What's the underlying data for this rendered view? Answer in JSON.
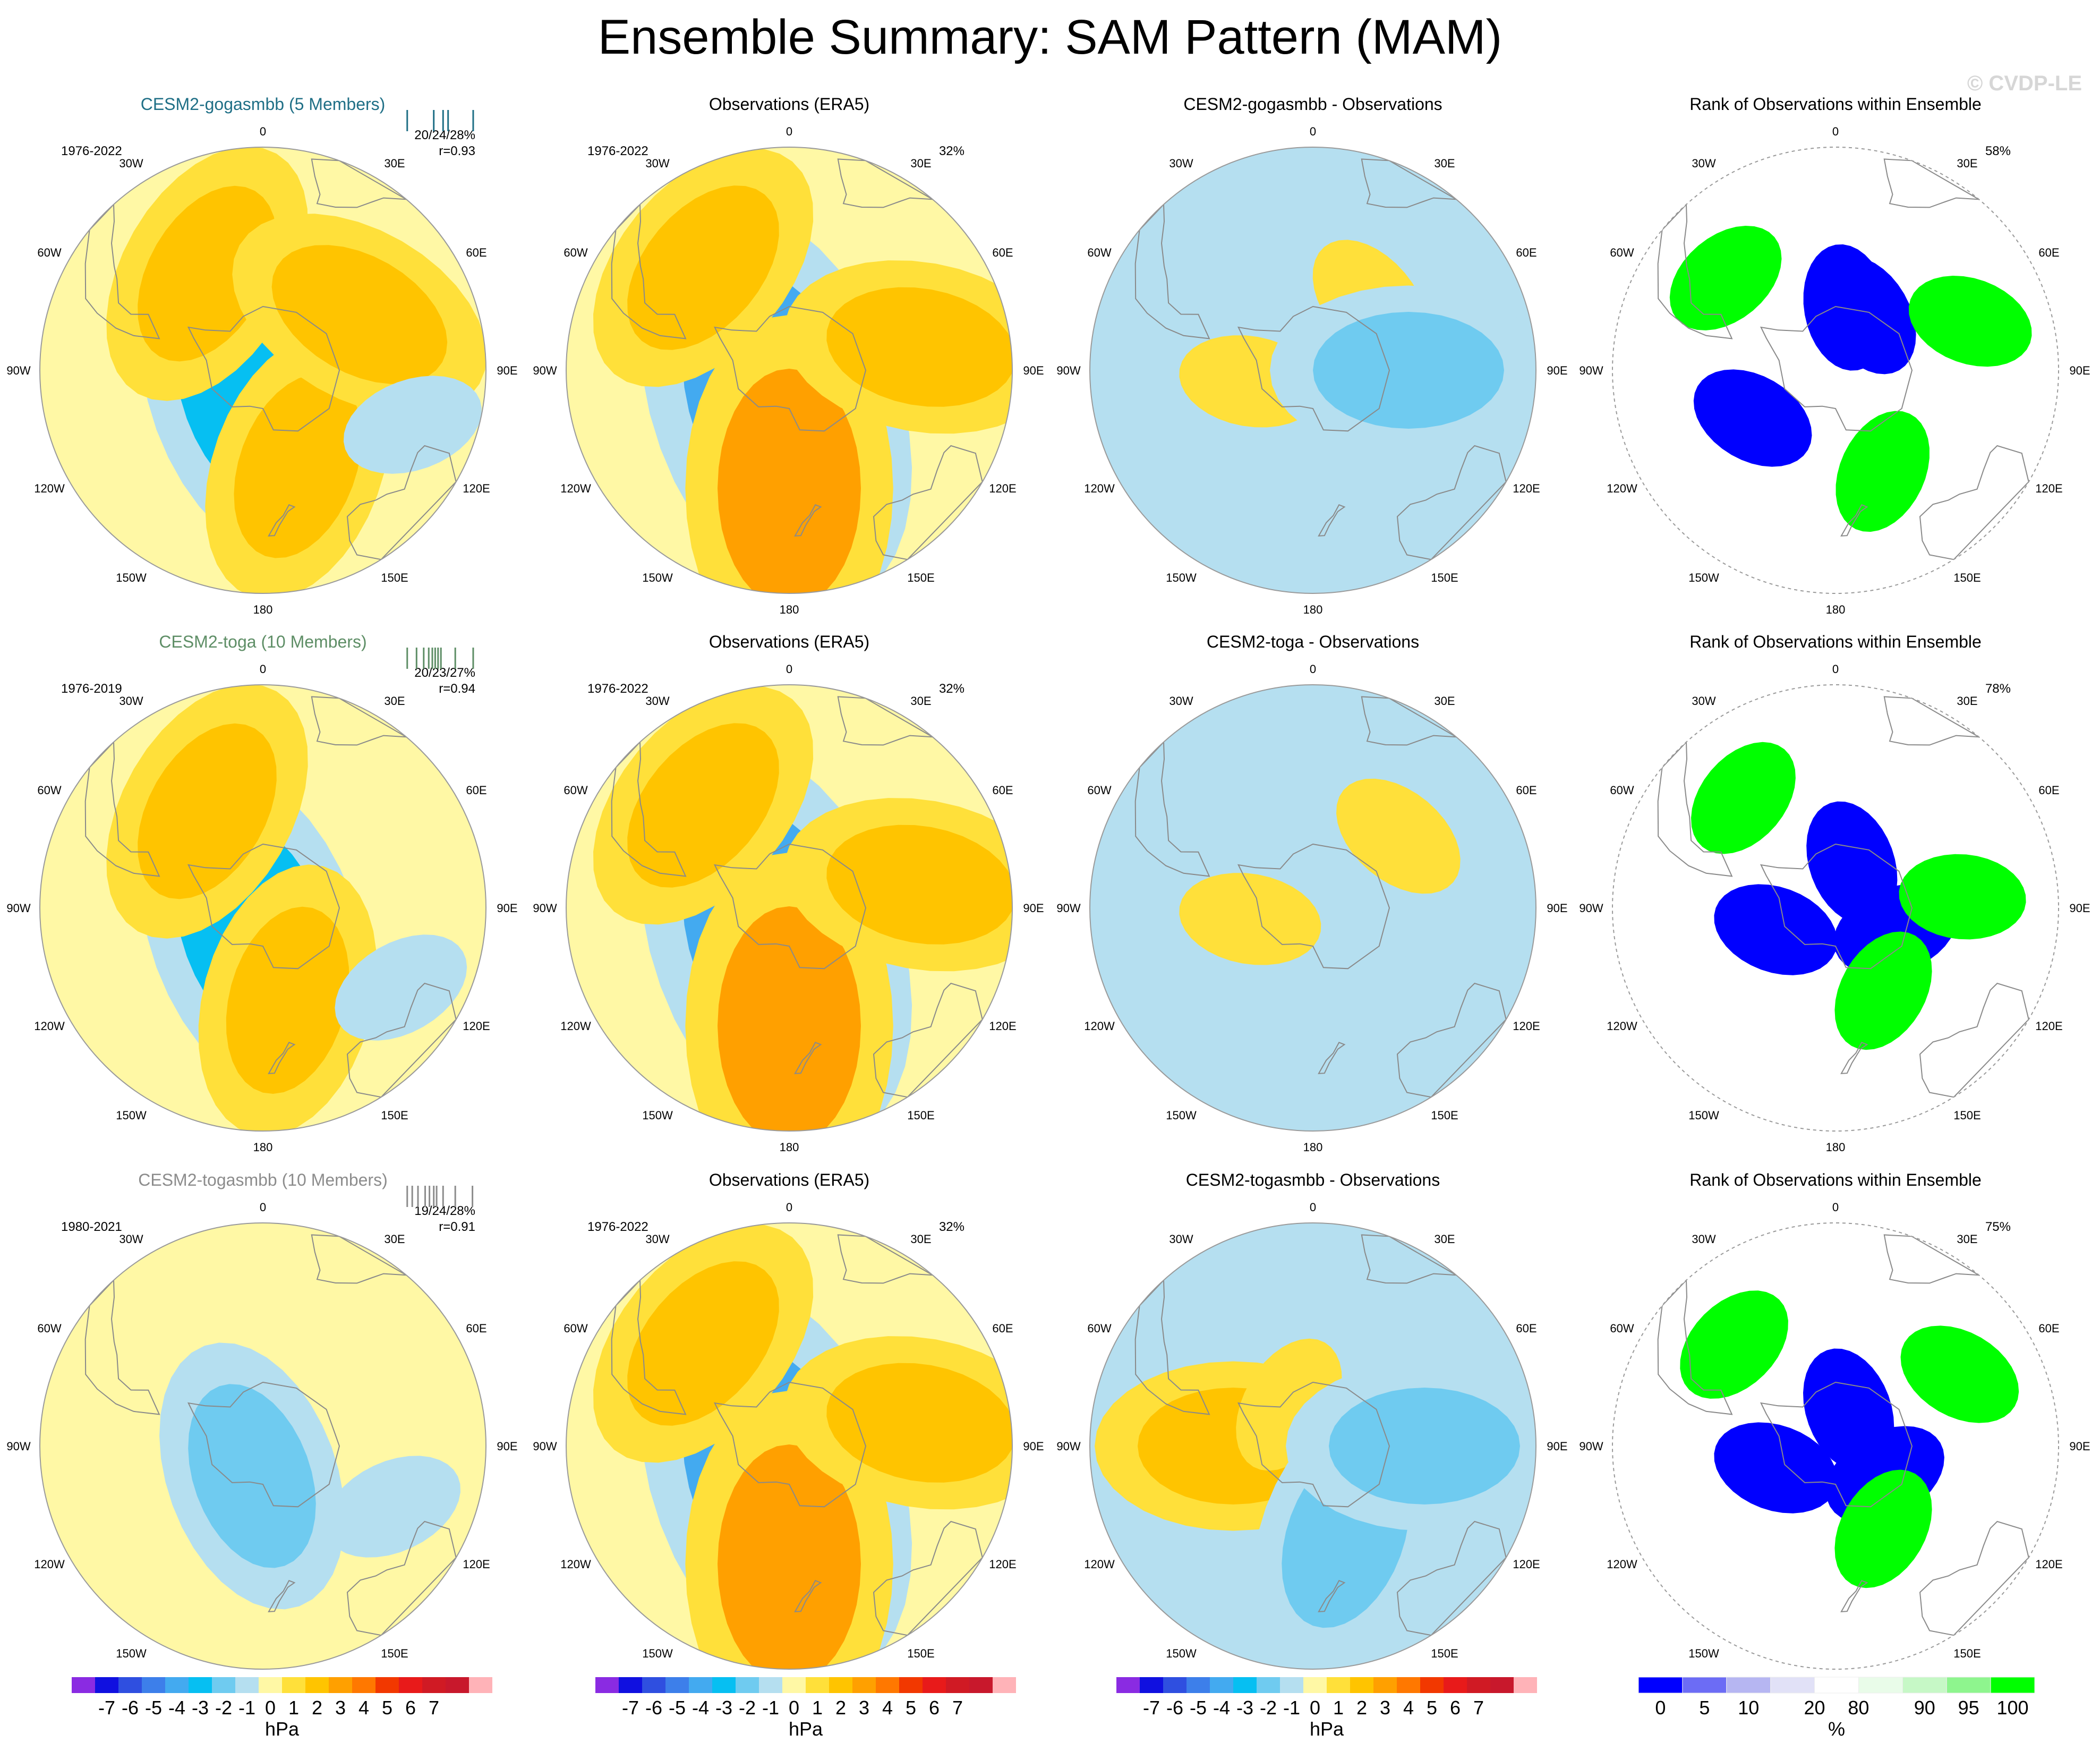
{
  "title": "Ensemble Summary: SAM Pattern (MAM)",
  "watermark": "© CVDP-LE",
  "longitude_labels": [
    "0",
    "30E",
    "60E",
    "90E",
    "120E",
    "150E",
    "180",
    "150W",
    "120W",
    "90W",
    "60W",
    "30W"
  ],
  "colors": {
    "land_outline": "#8a8a8a",
    "panel_border": "#9a9a9a",
    "hpa_scale": [
      "#8a2be2",
      "#1010e0",
      "#2f4fe0",
      "#3d7fea",
      "#43aaf0",
      "#06bff2",
      "#6fcbf0",
      "#b5dff0",
      "#fff8a5",
      "#ffe03a",
      "#ffc400",
      "#ffa000",
      "#ff7800",
      "#f23800",
      "#e81a1a",
      "#d01a24",
      "#c8182c",
      "#ffb3b8"
    ],
    "rank_scale": [
      "#0000ff",
      "#6c6cf5",
      "#b6b6f2",
      "#e1e1f7",
      "#ffffff",
      "#e9fce9",
      "#c6f8c6",
      "#8ef58e",
      "#00ff00"
    ]
  },
  "colorbars": {
    "hpa": {
      "ticks": [
        "-7",
        "-6",
        "-5",
        "-4",
        "-3",
        "-2",
        "-1",
        "0",
        "1",
        "2",
        "3",
        "4",
        "5",
        "6",
        "7"
      ],
      "unit": "hPa"
    },
    "rank": {
      "ticks": [
        "0",
        "5",
        "10",
        "20",
        "80",
        "90",
        "95",
        "100"
      ],
      "unit": "%"
    }
  },
  "chart_data": [
    {
      "type": "heatmap",
      "projection": "south-polar-stereographic",
      "title": "CESM2-gogasmbb (5 Members)",
      "title_color": "#1f6f86",
      "period": "1976-2022",
      "stats": "20/24/28%",
      "pattern_correlation": "r=0.93",
      "member_ticks": [
        0.05,
        0.42,
        0.55,
        0.62,
        0.97
      ],
      "tick_color": "#1f6f86",
      "units": "hPa",
      "features": [
        {
          "lon": 200,
          "lat": -82,
          "value": -3
        },
        {
          "lon": 330,
          "lat": -55,
          "value": 2
        },
        {
          "lon": 160,
          "lat": -58,
          "value": 2
        },
        {
          "lon": 60,
          "lat": -55,
          "value": 2
        },
        {
          "lon": 110,
          "lat": -40,
          "value": -1
        }
      ]
    },
    {
      "type": "heatmap",
      "projection": "south-polar-stereographic",
      "title": "Observations (ERA5)",
      "title_color": "#000000",
      "period": "1976-2022",
      "percent_variance": "32%",
      "units": "hPa",
      "features": [
        {
          "lon": 200,
          "lat": -78,
          "value": -4
        },
        {
          "lon": 320,
          "lat": -48,
          "value": 2
        },
        {
          "lon": 180,
          "lat": -53,
          "value": 3
        },
        {
          "lon": 80,
          "lat": -48,
          "value": 2
        }
      ]
    },
    {
      "type": "heatmap",
      "projection": "south-polar-stereographic",
      "title": "CESM2-gogasmbb - Observations",
      "title_color": "#000000",
      "units": "hPa",
      "features": [
        {
          "lon": 260,
          "lat": -70,
          "value": 1
        },
        {
          "lon": 40,
          "lat": -62,
          "value": 1
        },
        {
          "lon": 90,
          "lat": -60,
          "value": -2
        }
      ]
    },
    {
      "type": "heatmap",
      "projection": "south-polar-stereographic",
      "title": "Rank of Observations within Ensemble",
      "title_color": "#000000",
      "percent_area": "58%",
      "units": "%",
      "features": [
        {
          "lon": 240,
          "lat": -60,
          "value": 0
        },
        {
          "lon": 10,
          "lat": -70,
          "value": 0
        },
        {
          "lon": 30,
          "lat": -70,
          "value": 0
        },
        {
          "lon": 310,
          "lat": -45,
          "value": 100
        },
        {
          "lon": 70,
          "lat": -45,
          "value": 100
        },
        {
          "lon": 155,
          "lat": -55,
          "value": 100
        }
      ]
    },
    {
      "type": "heatmap",
      "projection": "south-polar-stereographic",
      "title": "CESM2-toga (10 Members)",
      "title_color": "#5e8e66",
      "period": "1976-2019",
      "stats": "20/23/27%",
      "pattern_correlation": "r=0.94",
      "member_ticks": [
        0.05,
        0.18,
        0.28,
        0.35,
        0.4,
        0.44,
        0.48,
        0.52,
        0.72,
        0.97
      ],
      "tick_color": "#5e8e66",
      "units": "hPa",
      "features": [
        {
          "lon": 200,
          "lat": -82,
          "value": -3
        },
        {
          "lon": 330,
          "lat": -55,
          "value": 2
        },
        {
          "lon": 165,
          "lat": -60,
          "value": 2
        },
        {
          "lon": 120,
          "lat": -40,
          "value": -1
        }
      ]
    },
    {
      "type": "heatmap",
      "projection": "south-polar-stereographic",
      "title": "Observations (ERA5)",
      "title_color": "#000000",
      "period": "1976-2022",
      "percent_variance": "32%",
      "units": "hPa",
      "features": [
        {
          "lon": 200,
          "lat": -78,
          "value": -4
        },
        {
          "lon": 320,
          "lat": -48,
          "value": 2
        },
        {
          "lon": 180,
          "lat": -53,
          "value": 3
        },
        {
          "lon": 80,
          "lat": -48,
          "value": 2
        }
      ]
    },
    {
      "type": "heatmap",
      "projection": "south-polar-stereographic",
      "title": "CESM2-toga - Observations",
      "title_color": "#000000",
      "units": "hPa",
      "features": [
        {
          "lon": 260,
          "lat": -70,
          "value": 1
        },
        {
          "lon": 150,
          "lat": -65,
          "value": -1
        },
        {
          "lon": 50,
          "lat": -55,
          "value": 1
        }
      ]
    },
    {
      "type": "heatmap",
      "projection": "south-polar-stereographic",
      "title": "Rank of Observations within Ensemble",
      "title_color": "#000000",
      "percent_area": "78%",
      "units": "%",
      "features": [
        {
          "lon": 250,
          "lat": -70,
          "value": 0
        },
        {
          "lon": 20,
          "lat": -75,
          "value": 0
        },
        {
          "lon": 110,
          "lat": -70,
          "value": 0
        },
        {
          "lon": 320,
          "lat": -45,
          "value": 100
        },
        {
          "lon": 85,
          "lat": -50,
          "value": 100
        },
        {
          "lon": 150,
          "lat": -60,
          "value": 100
        }
      ]
    },
    {
      "type": "heatmap",
      "projection": "south-polar-stereographic",
      "title": "CESM2-togasmbb (10 Members)",
      "title_color": "#8c8c8c",
      "period": "1980-2021",
      "stats": "19/24/28%",
      "pattern_correlation": "r=0.91",
      "member_ticks": [
        0.05,
        0.12,
        0.2,
        0.3,
        0.36,
        0.42,
        0.46,
        0.55,
        0.72,
        0.96
      ],
      "tick_color": "#8c8c8c",
      "units": "hPa",
      "features": [
        {
          "lon": 200,
          "lat": -80,
          "value": -2
        },
        {
          "lon": 115,
          "lat": -45,
          "value": -1
        }
      ]
    },
    {
      "type": "heatmap",
      "projection": "south-polar-stereographic",
      "title": "Observations (ERA5)",
      "title_color": "#000000",
      "period": "1976-2022",
      "percent_variance": "32%",
      "units": "hPa",
      "features": [
        {
          "lon": 200,
          "lat": -78,
          "value": -4
        },
        {
          "lon": 320,
          "lat": -48,
          "value": 2
        },
        {
          "lon": 180,
          "lat": -53,
          "value": 3
        },
        {
          "lon": 80,
          "lat": -48,
          "value": 2
        }
      ]
    },
    {
      "type": "heatmap",
      "projection": "south-polar-stereographic",
      "title": "CESM2-togasmbb - Observations",
      "title_color": "#000000",
      "units": "hPa",
      "features": [
        {
          "lon": 270,
          "lat": -65,
          "value": 2
        },
        {
          "lon": 330,
          "lat": -75,
          "value": 1
        },
        {
          "lon": 160,
          "lat": -60,
          "value": -2
        },
        {
          "lon": 90,
          "lat": -55,
          "value": -2
        }
      ]
    },
    {
      "type": "heatmap",
      "projection": "south-polar-stereographic",
      "title": "Rank of Observations within Ensemble",
      "title_color": "#000000",
      "percent_area": "75%",
      "units": "%",
      "features": [
        {
          "lon": 250,
          "lat": -70,
          "value": 0
        },
        {
          "lon": 20,
          "lat": -78,
          "value": 0
        },
        {
          "lon": 120,
          "lat": -72,
          "value": 0
        },
        {
          "lon": 315,
          "lat": -45,
          "value": 100
        },
        {
          "lon": 60,
          "lat": -45,
          "value": 100
        },
        {
          "lon": 150,
          "lat": -60,
          "value": 100
        }
      ]
    }
  ]
}
